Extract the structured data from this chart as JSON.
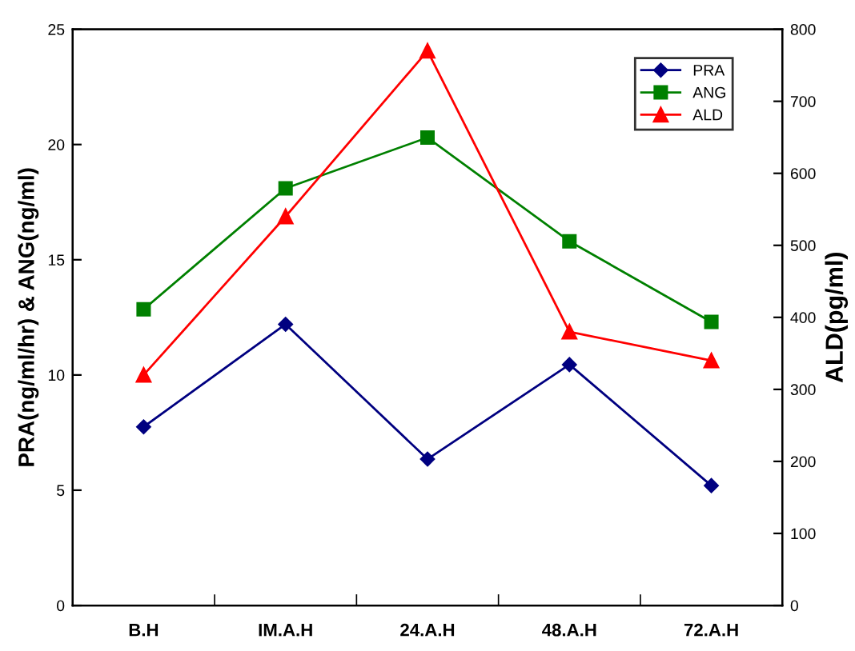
{
  "chart_data": {
    "type": "line",
    "categories": [
      "B.H",
      "IM.A.H",
      "24.A.H",
      "48.A.H",
      "72.A.H"
    ],
    "ylabel": "PRA(ng/ml/hr) & ANG(ng/ml)",
    "y2label": "ALD(pg/ml)",
    "ylim": [
      0,
      25
    ],
    "yticks": [
      0,
      5,
      10,
      15,
      20,
      25
    ],
    "y2lim": [
      0,
      800
    ],
    "y2ticks": [
      0,
      100,
      200,
      300,
      400,
      500,
      600,
      700,
      800
    ],
    "legend": "top right",
    "grid": false,
    "series": [
      {
        "name": "PRA",
        "color": "#000080",
        "marker": "diamond",
        "values": [
          7.75,
          12.2,
          6.35,
          10.45,
          5.2
        ]
      },
      {
        "name": "ANG",
        "color": "#008000",
        "marker": "square",
        "values": [
          12.85,
          18.1,
          20.3,
          15.8,
          12.3
        ]
      },
      {
        "name": "ALD",
        "color": "#ff0000",
        "marker": "triangle",
        "axis": "y2",
        "values": [
          320,
          540,
          770,
          380,
          340
        ]
      }
    ]
  }
}
